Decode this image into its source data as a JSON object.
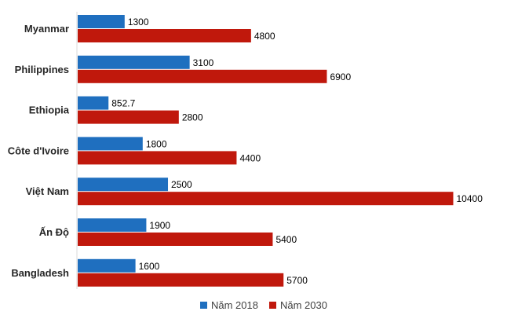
{
  "chart_data": {
    "type": "bar",
    "orientation": "horizontal",
    "categories": [
      "Myanmar",
      "Philippines",
      "Ethiopia",
      "Côte d'Ivoire",
      "Việt Nam",
      "Ấn Độ",
      "Bangladesh"
    ],
    "series": [
      {
        "name": "Năm 2018",
        "color": "#1f6fbf",
        "values": [
          1300,
          3100,
          852.7,
          1800,
          2500,
          1900,
          1600
        ],
        "labels": [
          "1300",
          "3100",
          "852.7",
          "1800",
          "2500",
          "1900",
          "1600"
        ]
      },
      {
        "name": "Năm 2030",
        "color": "#c0180c",
        "values": [
          4800,
          6900,
          2800,
          4400,
          10400,
          5400,
          5700
        ],
        "labels": [
          "4800",
          "6900",
          "2800",
          "4400",
          "10400",
          "5400",
          "5700"
        ]
      }
    ],
    "title": "",
    "xlabel": "",
    "ylabel": "",
    "xlim": [
      0,
      11500
    ],
    "grid": false,
    "legend_position": "bottom-center"
  }
}
